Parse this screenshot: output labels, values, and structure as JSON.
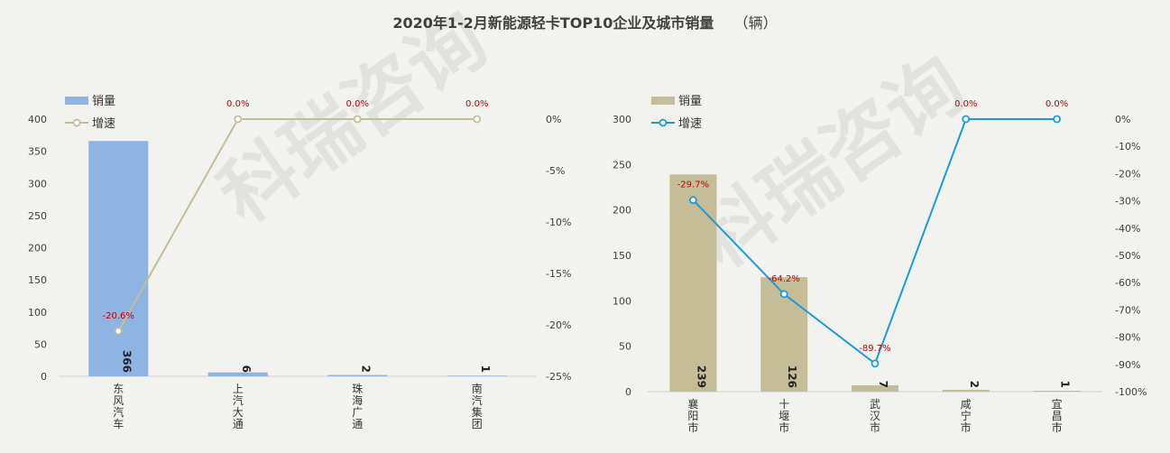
{
  "title": "2020年1-2月新能源轻卡TOP10企业及城市销量",
  "unit": "（辆）",
  "watermark": "科瑞咨询",
  "colors": {
    "left_bar": "#8eb4e3",
    "left_line": "#c4bd97",
    "right_bar": "#c4bd97",
    "right_line": "#1a9be0",
    "growth_label": "#c00000"
  },
  "chart_data": [
    {
      "type": "bar",
      "title": "",
      "categories": [
        "东风汽车",
        "上汽大通",
        "珠海广通",
        "南汽集团"
      ],
      "series": [
        {
          "name": "销量",
          "type": "bar",
          "values": [
            366,
            6,
            2,
            1
          ]
        },
        {
          "name": "增速",
          "type": "line",
          "axis": "right",
          "values": [
            -20.6,
            0.0,
            0.0,
            0.0
          ]
        }
      ],
      "value_labels": [
        "366",
        "6",
        "2",
        "1"
      ],
      "growth_labels": [
        "-20.6%",
        "0.0%",
        "0.0%",
        "0.0%"
      ],
      "ylim": [
        0,
        400
      ],
      "yticks": [
        0,
        50,
        100,
        150,
        200,
        250,
        300,
        350,
        400
      ],
      "y2lim": [
        -25,
        0
      ],
      "y2ticks": [
        "0%",
        "-5%",
        "-10%",
        "-15%",
        "-20%",
        "-25%"
      ],
      "legend": [
        "销量",
        "增速"
      ],
      "legend_position": "top-left",
      "grid": false
    },
    {
      "type": "bar",
      "title": "",
      "categories": [
        "襄阳市",
        "十堰市",
        "武汉市",
        "咸宁市",
        "宜昌市"
      ],
      "series": [
        {
          "name": "销量",
          "type": "bar",
          "values": [
            239,
            126,
            7,
            2,
            1
          ]
        },
        {
          "name": "增速",
          "type": "line",
          "axis": "right",
          "values": [
            -29.7,
            -64.2,
            -89.7,
            0.0,
            0.0
          ]
        }
      ],
      "value_labels": [
        "239",
        "126",
        "7",
        "2",
        "1"
      ],
      "growth_labels": [
        "-29.7%",
        "-64.2%",
        "-89.7%",
        "0.0%",
        "0.0%"
      ],
      "ylim": [
        0,
        300
      ],
      "yticks": [
        0,
        50,
        100,
        150,
        200,
        250,
        300
      ],
      "y2lim": [
        -100,
        0
      ],
      "y2ticks": [
        "0%",
        "-10%",
        "-20%",
        "-30%",
        "-40%",
        "-50%",
        "-60%",
        "-70%",
        "-80%",
        "-90%",
        "-100%"
      ],
      "legend": [
        "销量",
        "增速"
      ],
      "legend_position": "top-left",
      "grid": false
    }
  ]
}
